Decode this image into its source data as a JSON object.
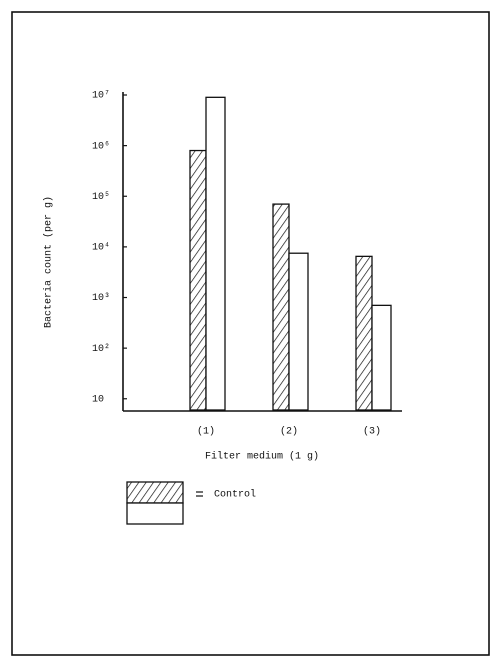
{
  "chart_data": {
    "type": "bar",
    "x_label": "Filter medium (1 g)",
    "y_label": "Bacteria count (per g)",
    "categories": [
      "(1)",
      "(2)",
      "(3)"
    ],
    "series": [
      {
        "name": "Control",
        "color": "#000000",
        "hatch": true,
        "values": [
          800000,
          70000,
          6500
        ]
      },
      {
        "color": "#ffffff",
        "hatch": false,
        "values": [
          9000000,
          7500,
          700
        ]
      }
    ],
    "log_scale": true,
    "ylim": [
      6,
      10000000
    ],
    "yticks": [
      10,
      {
        "value": 100,
        "label": "10²"
      },
      {
        "value": 1000,
        "label": "10³"
      },
      {
        "value": 10000,
        "label": "10⁴"
      },
      {
        "value": 100000,
        "label": "10⁵"
      },
      {
        "value": 1000000,
        "label": "10⁶"
      },
      {
        "value": 10000000,
        "label": "10⁷"
      }
    ],
    "grid": false,
    "legend": "bottom-left"
  }
}
